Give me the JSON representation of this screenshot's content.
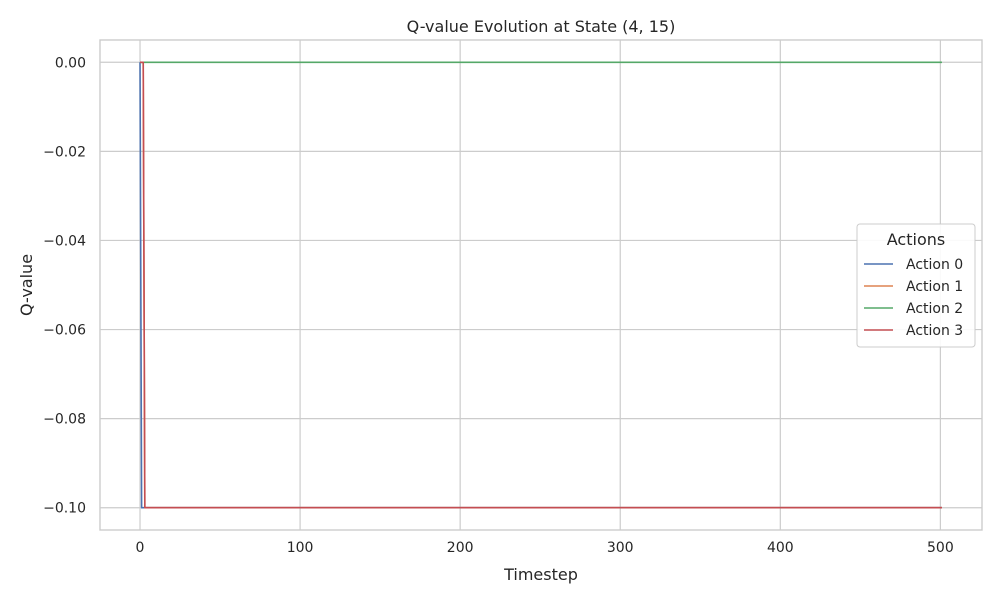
{
  "chart_data": {
    "type": "line",
    "title": "Q-value Evolution at State (4, 15)",
    "xlabel": "Timestep",
    "ylabel": "Q-value",
    "xlim": [
      -25,
      526
    ],
    "ylim": [
      -0.105,
      0.005
    ],
    "xticks": [
      0,
      100,
      200,
      300,
      400,
      500
    ],
    "xtick_labels": [
      "0",
      "100",
      "200",
      "300",
      "400",
      "500"
    ],
    "yticks": [
      0.0,
      -0.02,
      -0.04,
      -0.06,
      -0.08,
      -0.1
    ],
    "ytick_labels": [
      "0.00",
      "−0.02",
      "−0.04",
      "−0.06",
      "−0.08",
      "−0.10"
    ],
    "grid": true,
    "legend": {
      "title": "Actions",
      "placement": "center-right"
    },
    "series": [
      {
        "name": "Action 0",
        "color": "#4c72b0",
        "points": [
          [
            0,
            0.0
          ],
          [
            1,
            -0.1
          ],
          [
            3,
            -0.1
          ],
          [
            501,
            -0.1
          ]
        ]
      },
      {
        "name": "Action 1",
        "color": "#dd8452",
        "points": [
          [
            0,
            0.0
          ],
          [
            2,
            0.0
          ],
          [
            3,
            -0.1
          ],
          [
            501,
            -0.1
          ]
        ]
      },
      {
        "name": "Action 2",
        "color": "#55a868",
        "points": [
          [
            0,
            0.0
          ],
          [
            501,
            0.0
          ]
        ]
      },
      {
        "name": "Action 3",
        "color": "#c44e52",
        "points": [
          [
            0,
            0.0
          ],
          [
            2,
            0.0
          ],
          [
            3,
            -0.1
          ],
          [
            501,
            -0.1
          ]
        ]
      }
    ]
  }
}
